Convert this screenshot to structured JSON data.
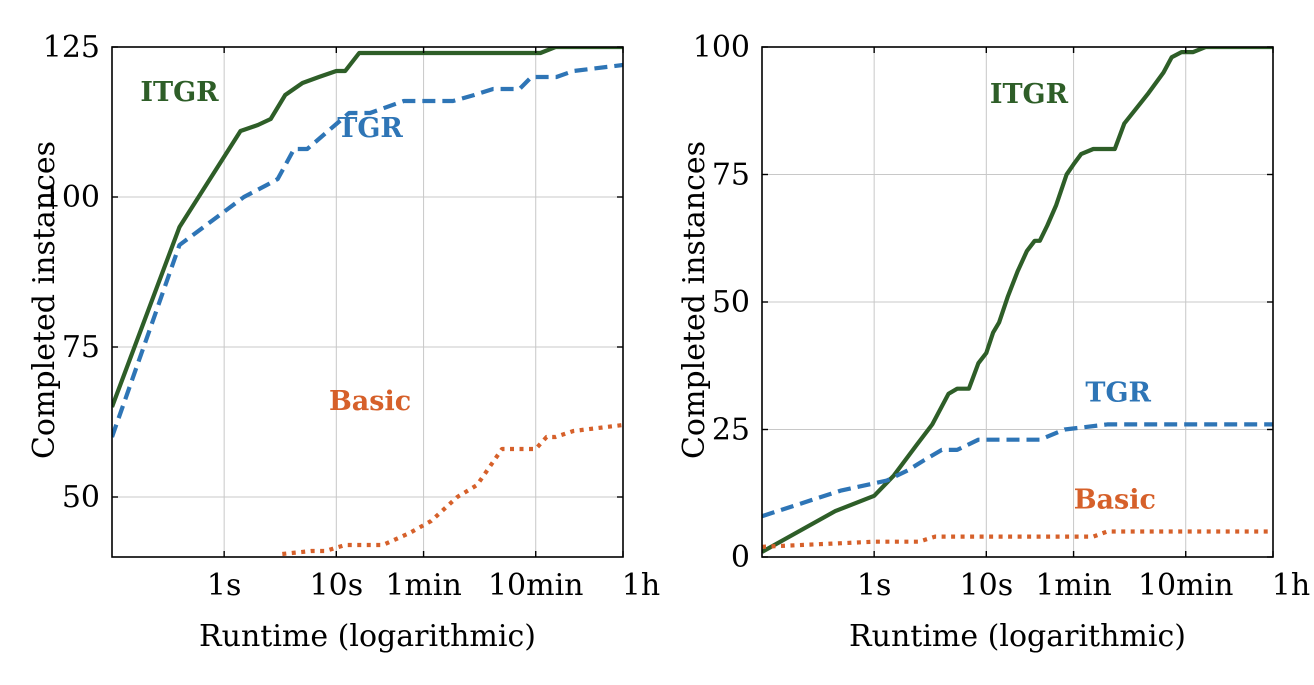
{
  "chart_data": [
    {
      "type": "line",
      "xlabel": "Runtime (logarithmic)",
      "ylabel": "Completed instances",
      "xscale": "log",
      "xunit": "seconds",
      "xlim": [
        0.1,
        3600
      ],
      "ylim": [
        40,
        125
      ],
      "grid": true,
      "xticks": [
        1,
        10,
        60,
        600,
        3600
      ],
      "xtick_labels": [
        "1s",
        "10s",
        "1min",
        "10min",
        "1h"
      ],
      "yticks": [
        50,
        75,
        100,
        125
      ],
      "ytick_labels": [
        "50",
        "75",
        "100",
        "125"
      ],
      "series": [
        {
          "name": "ITGR",
          "color": "#2e5e28",
          "style": "solid",
          "label_anchor": [
            0.4,
            116
          ],
          "x": [
            0.1,
            0.4,
            1.4,
            2.0,
            2.6,
            3.5,
            5,
            7,
            10,
            12,
            16,
            60,
            660,
            900,
            3600
          ],
          "y": [
            65,
            95,
            111,
            112,
            113,
            117,
            119,
            120,
            121,
            121,
            124,
            124,
            124,
            125,
            125
          ]
        },
        {
          "name": "TGR",
          "color": "#2e75b6",
          "style": "dashed",
          "label_anchor": [
            20,
            110
          ],
          "x": [
            0.1,
            0.4,
            1.5,
            2.4,
            3.0,
            4.2,
            5.5,
            13,
            20,
            40,
            110,
            170,
            250,
            430,
            550,
            800,
            920,
            1300,
            3600
          ],
          "y": [
            60,
            92,
            100,
            102,
            103,
            108,
            108,
            114,
            114,
            116,
            116,
            117,
            118,
            118,
            120,
            120,
            120,
            121,
            122
          ]
        },
        {
          "name": "Basic",
          "color": "#d6602a",
          "style": "dotted",
          "label_anchor": [
            20,
            64.5
          ],
          "x": [
            3.3,
            6,
            8,
            12,
            20,
            26,
            45,
            70,
            120,
            180,
            300,
            400,
            500,
            600,
            750,
            900,
            1300,
            3600
          ],
          "y": [
            40.5,
            41,
            41,
            42,
            42,
            42,
            44,
            46,
            50,
            52,
            58,
            58,
            58,
            58,
            60,
            60,
            61,
            62
          ]
        }
      ]
    },
    {
      "type": "line",
      "xlabel": "Runtime (logarithmic)",
      "ylabel": "Completed instances",
      "xscale": "log",
      "xunit": "seconds",
      "xlim": [
        0.1,
        3600
      ],
      "ylim": [
        0,
        100
      ],
      "grid": true,
      "xticks": [
        1,
        10,
        60,
        600,
        3600
      ],
      "xtick_labels": [
        "1s",
        "10s",
        "1min",
        "10min",
        "1h"
      ],
      "yticks": [
        0,
        25,
        50,
        75,
        100
      ],
      "ytick_labels": [
        "0",
        "25",
        "50",
        "75",
        "100"
      ],
      "series": [
        {
          "name": "ITGR",
          "color": "#2e5e28",
          "style": "solid",
          "label_anchor": [
            24,
            89
          ],
          "x": [
            0.1,
            0.45,
            1.0,
            1.5,
            2.4,
            3.3,
            4.6,
            5.5,
            7,
            8.5,
            10,
            11.5,
            13,
            15.5,
            19,
            23,
            27,
            30,
            35,
            42,
            52,
            60,
            70,
            90,
            140,
            170,
            280,
            380,
            450,
            550,
            700,
            900,
            3600
          ],
          "y": [
            1,
            9,
            12,
            16,
            22,
            26,
            32,
            33,
            33,
            38,
            40,
            44,
            46,
            51,
            56,
            60,
            62,
            62,
            65,
            69,
            75,
            77,
            79,
            80,
            80,
            85,
            91,
            95,
            98,
            99,
            99,
            100,
            100
          ]
        },
        {
          "name": "TGR",
          "color": "#2e75b6",
          "style": "dashed",
          "label_anchor": [
            150,
            30.5
          ],
          "x": [
            0.1,
            0.5,
            1.3,
            2.0,
            2.8,
            4.0,
            5.5,
            8.5,
            15,
            30,
            50,
            120,
            3600
          ],
          "y": [
            8,
            13,
            15,
            17,
            19,
            21,
            21,
            23,
            23,
            23,
            25,
            26,
            26
          ]
        },
        {
          "name": "Basic",
          "color": "#d6602a",
          "style": "dotted",
          "label_anchor": [
            140,
            9.5
          ],
          "x": [
            0.1,
            1.0,
            2.5,
            3.5,
            12,
            35,
            90,
            120,
            3600
          ],
          "y": [
            2,
            3,
            3,
            4,
            4,
            4,
            4,
            5,
            5
          ]
        }
      ]
    }
  ]
}
